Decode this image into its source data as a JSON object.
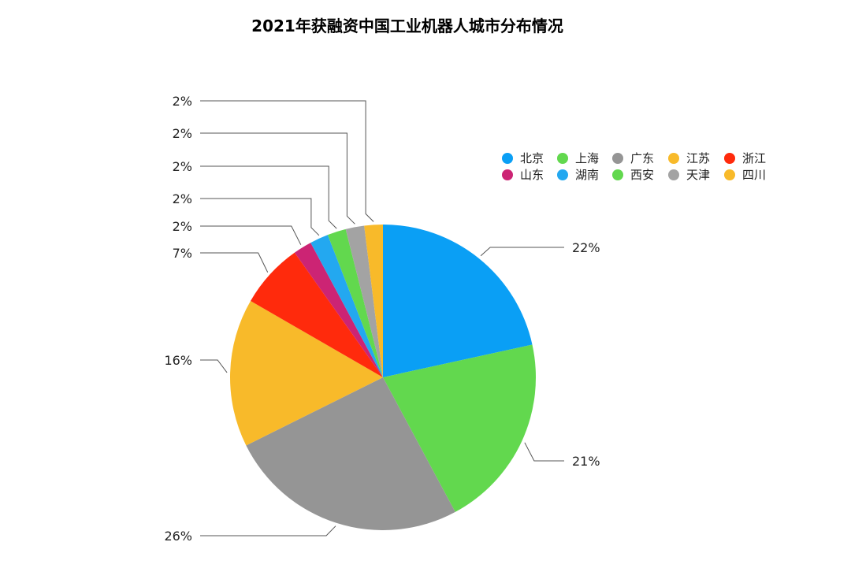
{
  "chart_data": {
    "type": "pie",
    "title": "2021年获融资中国工业机器人城市分布情况",
    "legend_position": "top-right",
    "slices": [
      {
        "name": "北京",
        "value": 22,
        "label": "22%",
        "color": "#0A9FF5"
      },
      {
        "name": "上海",
        "value": 21,
        "label": "21%",
        "color": "#62D84E"
      },
      {
        "name": "广东",
        "value": 26,
        "label": "26%",
        "color": "#959595"
      },
      {
        "name": "江苏",
        "value": 16,
        "label": "16%",
        "color": "#F8BA2A"
      },
      {
        "name": "浙江",
        "value": 7,
        "label": "7%",
        "color": "#FF2A0C"
      },
      {
        "name": "山东",
        "value": 2,
        "label": "2%",
        "color": "#CC2474"
      },
      {
        "name": "湖南",
        "value": 2,
        "label": "2%",
        "color": "#23A8F0"
      },
      {
        "name": "西安",
        "value": 2,
        "label": "2%",
        "color": "#62D84E"
      },
      {
        "name": "天津",
        "value": 2,
        "label": "2%",
        "color": "#A3A3A3"
      },
      {
        "name": "四川",
        "value": 2,
        "label": "2%",
        "color": "#F8BA2A"
      }
    ]
  }
}
